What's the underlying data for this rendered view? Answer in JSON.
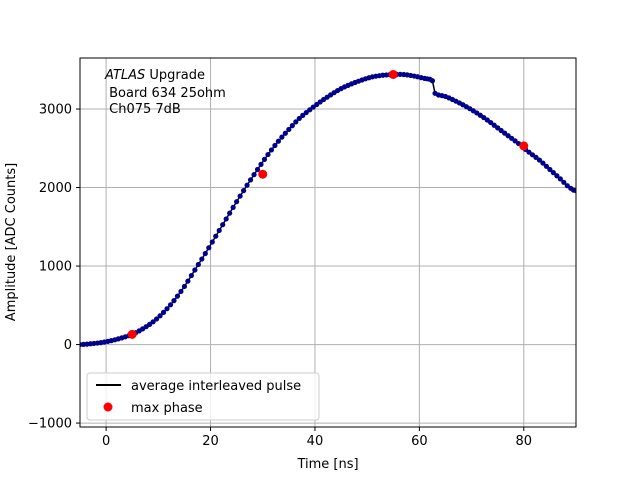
{
  "chart_data": {
    "type": "scatter",
    "title": "",
    "annotation": {
      "italic": "ATLAS",
      "lines": [
        " Upgrade",
        " Board 634 25ohm",
        " Ch075 7dB"
      ]
    },
    "xlabel": "Time [ns]",
    "ylabel": "Amplitude [ADC Counts]",
    "xlim": [
      -5,
      90
    ],
    "ylim": [
      -1050,
      3650
    ],
    "xticks": [
      0,
      20,
      40,
      60,
      80
    ],
    "yticks": [
      -1000,
      0,
      1000,
      2000,
      3000
    ],
    "grid": true,
    "legend_position": "lower-left",
    "legend": [
      {
        "label": "average interleaved pulse",
        "marker": "line",
        "color": "#000000"
      },
      {
        "label": "max phase",
        "marker": "circle",
        "color": "#ff0000"
      }
    ],
    "series": [
      {
        "name": "average interleaved pulse",
        "style": "line+points",
        "line_color": "#000000",
        "marker_color": "#00008b",
        "x": [
          -5,
          -3,
          -1,
          1,
          3,
          5,
          7,
          9,
          11,
          13,
          15,
          17,
          19,
          21,
          23,
          25,
          27,
          29,
          31,
          33,
          35,
          37,
          39,
          41,
          43,
          45,
          47,
          49,
          51,
          53,
          55,
          57,
          59,
          61,
          62.5,
          63,
          65,
          67,
          69,
          71,
          73,
          75,
          77,
          79,
          81,
          83,
          85,
          87,
          89,
          90
        ],
        "y": [
          0,
          10,
          25,
          50,
          85,
          130,
          200,
          290,
          410,
          560,
          740,
          950,
          1160,
          1380,
          1600,
          1820,
          2030,
          2230,
          2420,
          2590,
          2740,
          2880,
          2990,
          3090,
          3180,
          3260,
          3320,
          3370,
          3410,
          3430,
          3440,
          3440,
          3420,
          3390,
          3360,
          3200,
          3160,
          3100,
          3030,
          2950,
          2860,
          2760,
          2660,
          2560,
          2450,
          2350,
          2230,
          2110,
          1990,
          1960
        ]
      },
      {
        "name": "max phase",
        "style": "points",
        "marker_color": "#ff0000",
        "x": [
          5,
          30,
          55,
          80
        ],
        "y": [
          130,
          2170,
          3440,
          2530
        ]
      }
    ]
  }
}
